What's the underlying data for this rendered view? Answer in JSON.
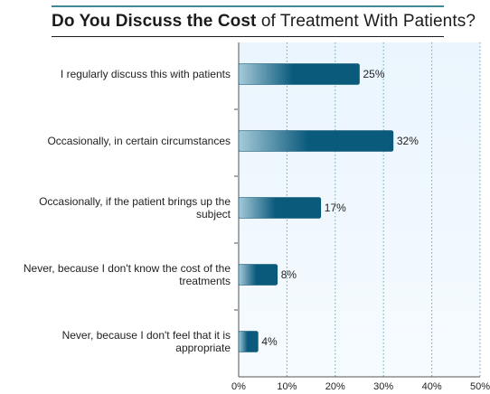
{
  "chart_data": {
    "type": "bar",
    "orientation": "horizontal",
    "title_bold": "Do You Discuss the Cost",
    "title_rest": " of Treatment With Patients?",
    "categories": [
      [
        "I regularly discuss this with patients"
      ],
      [
        "Occasionally, in certain circumstances"
      ],
      [
        "Occasionally, if the patient brings up the",
        "subject"
      ],
      [
        "Never, because I don't know the cost of the",
        "treatments"
      ],
      [
        "Never, because I don't feel that it is",
        "appropriate"
      ]
    ],
    "values": [
      25,
      32,
      17,
      8,
      4
    ],
    "value_labels": [
      "25%",
      "32%",
      "17%",
      "8%",
      "4%"
    ],
    "xlim": [
      0,
      50
    ],
    "xticks": [
      0,
      10,
      20,
      30,
      40,
      50
    ],
    "xtick_labels": [
      "0%",
      "10%",
      "20%",
      "30%",
      "40%",
      "50%"
    ],
    "grid": "vertical dotted",
    "colors": {
      "bar_light": "#a6cad8",
      "bar_dark": "#0a5a7c",
      "plot_bg_top": "#eaf5fd",
      "plot_bg_bottom": "#f6fbff",
      "grid": "#6aa8b0",
      "title_rule": "#3f8a95"
    }
  }
}
